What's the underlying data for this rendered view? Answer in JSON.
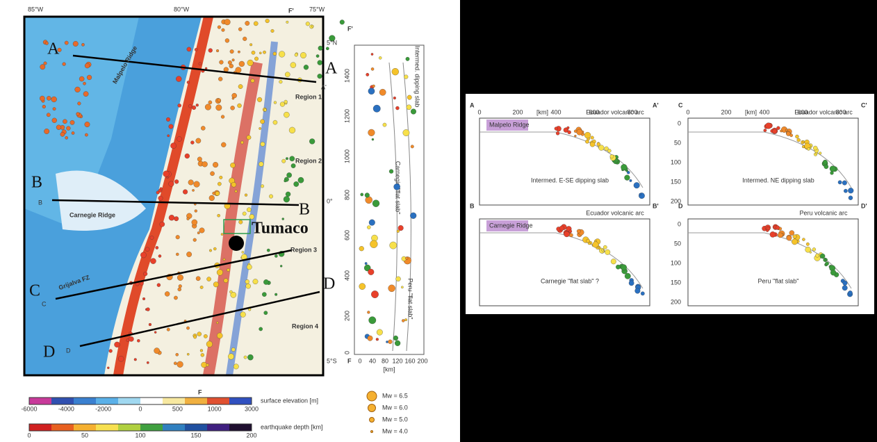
{
  "map": {
    "lon_labels": [
      "85°W",
      "80°W",
      "75°W"
    ],
    "lat_labels": [
      "5°N",
      "0°",
      "5°S"
    ],
    "features": [
      "Malpelo Ridge",
      "Carnegie Ridge",
      "Grijalva FZ"
    ],
    "regions": [
      "Region 1",
      "Region 2",
      "Region 3",
      "Region 4"
    ],
    "profile_labels": [
      "A",
      "A",
      "B",
      "B",
      "C",
      "D",
      "D"
    ],
    "small_labels": [
      "A'",
      "B",
      "C",
      "D"
    ],
    "city": "Tumaco",
    "section_ends": [
      "F",
      "F'"
    ]
  },
  "colorbars": [
    {
      "label": "surface elevation [m]",
      "ticks": [
        "-6000",
        "-4000",
        "-2000",
        "0",
        "500",
        "1000",
        "3000"
      ]
    },
    {
      "label": "earthquake depth [km]",
      "ticks": [
        "0",
        "50",
        "100",
        "150",
        "200"
      ]
    }
  ],
  "legend": [
    "Mw = 6.5",
    "Mw = 6.0",
    "Mw = 5.0",
    "Mw = 4.0"
  ],
  "section_f": {
    "start": "F",
    "end": "F'",
    "axis": "[km]",
    "ticks": [
      "0",
      "200",
      "400",
      "600",
      "800",
      "1000",
      "1200",
      "1400"
    ],
    "depth_ticks": [
      "0",
      "40",
      "80",
      "120",
      "160",
      "200"
    ],
    "notes": [
      "Carnegie \"flat slab\"",
      "Intermed. dipping slab",
      "Peru \"flat slab\""
    ]
  },
  "cross_sections": [
    {
      "start": "A",
      "end": "A'",
      "arc": "Ecuador volcanic arc",
      "ridge": "Malpelo Ridge",
      "note": "Intermed. E-SE dipping slab"
    },
    {
      "start": "C",
      "end": "C'",
      "arc": "Ecuador volcanic arc",
      "note": "Intermed. NE dipping slab"
    },
    {
      "start": "B",
      "end": "B'",
      "arc": "Ecuador volcanic arc",
      "ridge": "Carnegie Ridge",
      "note": "Carnegie \"flat slab\" ?"
    },
    {
      "start": "D",
      "end": "D'",
      "arc": "Peru volcanic arc",
      "note": "Peru \"flat slab\""
    }
  ],
  "section_axes": {
    "distance_ticks": [
      "0",
      "200",
      "400",
      "600",
      "800"
    ],
    "unit": "[km]",
    "depth_ticks": [
      "0",
      "50",
      "100",
      "150",
      "200"
    ]
  }
}
